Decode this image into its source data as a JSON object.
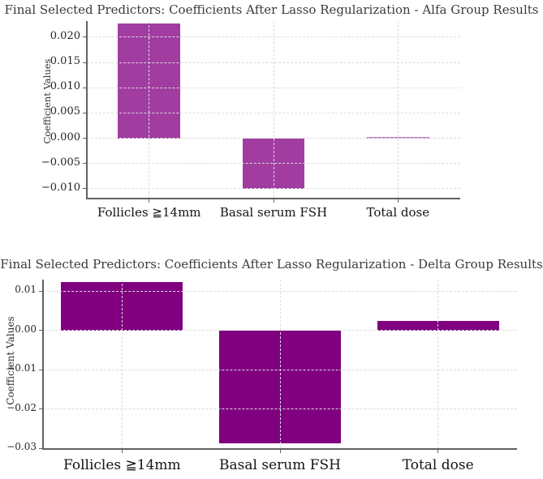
{
  "style": {
    "background": "#ffffff",
    "grid_color": "#dcdcdc",
    "axis_color": "#616161",
    "title_color": "#3b3b3b",
    "tick_label_color": "#262626",
    "category_label_color": "#141414",
    "alfa_bar_color": "#a13ca1",
    "delta_bar_color": "#800080"
  },
  "chart_data": [
    {
      "type": "bar",
      "title": "Final Selected Predictors: Coefficients After Lasso Regularization - Alfa Group Results",
      "xlabel": "",
      "ylabel": "Coefficient Values",
      "categories": [
        "Follicles ≧14mm",
        "Basal serum FSH",
        "Total dose"
      ],
      "values": [
        0.0228,
        -0.01,
        0.0002
      ],
      "bar_colors": [
        "#a13ca1",
        "#a13ca1",
        "#c584c5"
      ],
      "ylim": [
        -0.0118,
        0.0232
      ],
      "ytick_values": [
        0.02,
        0.015,
        0.01,
        0.005,
        0.0,
        -0.005,
        -0.01
      ],
      "ytick_labels": [
        "0.020",
        "0.015",
        "0.010",
        "0.005",
        "0.000",
        "−0.005",
        "−0.010"
      ],
      "bar_width_frac": 0.5,
      "grid": true,
      "legend": false
    },
    {
      "type": "bar",
      "title": "Final Selected Predictors: Coefficients After Lasso Regularization - Delta Group Results",
      "xlabel": "",
      "ylabel": "Coefficient Values",
      "categories": [
        "Follicles ≧14mm",
        "Basal serum FSH",
        "Total dose"
      ],
      "values": [
        0.0122,
        -0.0288,
        0.0023
      ],
      "bar_colors": [
        "#800080",
        "#800080",
        "#800080"
      ],
      "ylim": [
        -0.03,
        0.0129
      ],
      "ytick_values": [
        0.01,
        0.0,
        -0.01,
        -0.02,
        -0.03
      ],
      "ytick_labels": [
        "0.01",
        "0.00",
        "−0.01",
        "−0.02",
        "−0.03"
      ],
      "bar_width_frac": 0.77,
      "grid": true,
      "legend": false
    }
  ]
}
